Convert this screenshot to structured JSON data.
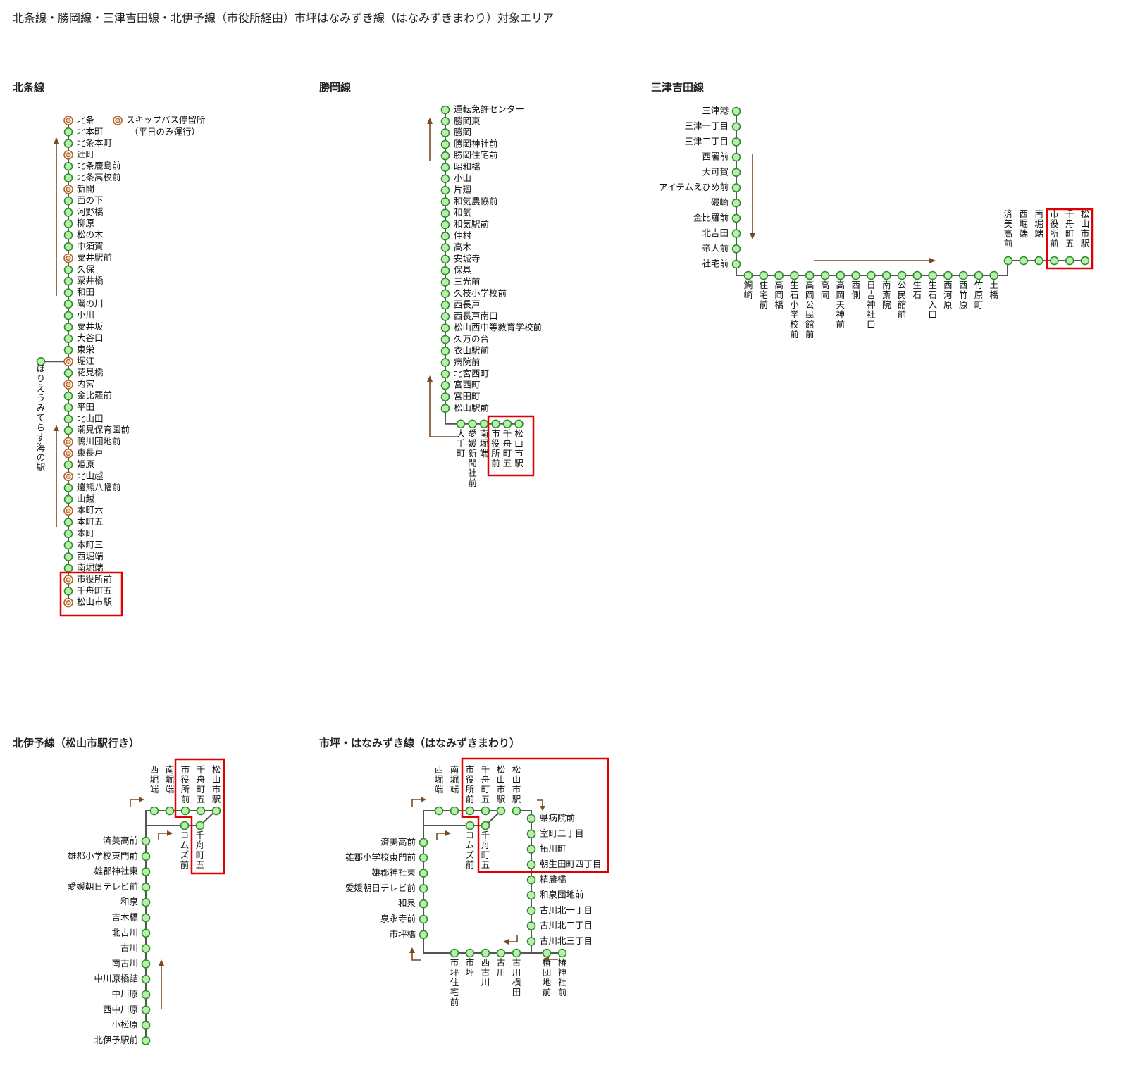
{
  "page_title": "北条線・勝岡線・三津吉田線・北伊予線（市役所経由）市坪はなみずき線（はなみずきまわり）対象エリア",
  "hojo": {
    "title": "北条線",
    "legend_label": "スキップバス停留所",
    "legend_note": "（平日のみ運行）",
    "branch_label": "ほりえうみてらす海の駅",
    "branch_at": "堀江",
    "stations": [
      {
        "name": "北条",
        "skip": true
      },
      {
        "name": "北本町",
        "skip": false
      },
      {
        "name": "北条本町",
        "skip": false
      },
      {
        "name": "辻町",
        "skip": true
      },
      {
        "name": "北条鹿島前",
        "skip": false
      },
      {
        "name": "北条高校前",
        "skip": false
      },
      {
        "name": "新開",
        "skip": true
      },
      {
        "name": "西の下",
        "skip": false
      },
      {
        "name": "河野橋",
        "skip": false
      },
      {
        "name": "柳原",
        "skip": false
      },
      {
        "name": "松の木",
        "skip": false
      },
      {
        "name": "中須賀",
        "skip": false
      },
      {
        "name": "粟井駅前",
        "skip": true
      },
      {
        "name": "久保",
        "skip": false
      },
      {
        "name": "粟井橋",
        "skip": false
      },
      {
        "name": "和田",
        "skip": false
      },
      {
        "name": "磯の川",
        "skip": false
      },
      {
        "name": "小川",
        "skip": false
      },
      {
        "name": "粟井坂",
        "skip": false
      },
      {
        "name": "大谷口",
        "skip": false
      },
      {
        "name": "東栄",
        "skip": false
      },
      {
        "name": "堀江",
        "skip": true
      },
      {
        "name": "花見橋",
        "skip": false
      },
      {
        "name": "内宮",
        "skip": true
      },
      {
        "name": "金比羅前",
        "skip": false
      },
      {
        "name": "平田",
        "skip": false
      },
      {
        "name": "北山田",
        "skip": false
      },
      {
        "name": "潮見保育園前",
        "skip": false
      },
      {
        "name": "鴨川団地前",
        "skip": true
      },
      {
        "name": "東長戸",
        "skip": true
      },
      {
        "name": "姫原",
        "skip": false
      },
      {
        "name": "北山越",
        "skip": true
      },
      {
        "name": "還熊八幡前",
        "skip": false
      },
      {
        "name": "山越",
        "skip": false
      },
      {
        "name": "本町六",
        "skip": true
      },
      {
        "name": "本町五",
        "skip": false
      },
      {
        "name": "本町",
        "skip": false
      },
      {
        "name": "本町三",
        "skip": false
      },
      {
        "name": "西堀端",
        "skip": false
      },
      {
        "name": "南堀端",
        "skip": false
      },
      {
        "name": "市役所前",
        "skip": true
      },
      {
        "name": "千舟町五",
        "skip": false
      },
      {
        "name": "松山市駅",
        "skip": true
      }
    ]
  },
  "katsuoka": {
    "title": "勝岡線",
    "stations": [
      "運転免許センター",
      "勝岡東",
      "勝岡",
      "勝岡神社前",
      "勝岡住宅前",
      "昭和橋",
      "小山",
      "片廻",
      "和気農協前",
      "和気",
      "和気駅前",
      "仲村",
      "高木",
      "安城寺",
      "保具",
      "三光前",
      "久枝小学校前",
      "西長戸",
      "西長戸南口",
      "松山西中等教育学校前",
      "久万の台",
      "衣山駅前",
      "病院前",
      "北宮西町",
      "宮西町",
      "宮田町",
      "松山駅前"
    ],
    "bottom_stations": [
      "大手町",
      "愛媛新聞社前",
      "南堀端",
      "市役所前",
      "千舟町五",
      "松山市駅"
    ]
  },
  "mitsu": {
    "title": "三津吉田線",
    "vertical_stations": [
      "三津港",
      "三津一丁目",
      "三津二丁目",
      "西署前",
      "大可賀",
      "アイテムえひめ前",
      "磯崎",
      "金比羅前",
      "北吉田",
      "帝人前",
      "社宅前"
    ],
    "bottom_stations": [
      "鯛崎",
      "住宅前",
      "高岡橋",
      "生石小学校前",
      "高岡公民館前",
      "高岡",
      "高岡天神前",
      "西側",
      "日吉神社口",
      "南斎院",
      "公民館前",
      "生石",
      "生石入口",
      "西河原",
      "西竹原",
      "竹原町",
      "土橋"
    ],
    "top_stations": [
      "済美高前",
      "西堀端",
      "南堀端",
      "市役所前",
      "千舟町五",
      "松山市駅"
    ]
  },
  "kitaiyo": {
    "title": "北伊予線（松山市駅行き）",
    "top_stations": [
      "西堀端",
      "南堀端",
      "市役所前",
      "千舟町五",
      "松山市駅"
    ],
    "mid_stations": [
      "コムズ前",
      "千舟町五"
    ],
    "vertical_stations": [
      "済美高前",
      "雄郡小学校東門前",
      "雄郡神社東",
      "愛媛朝日テレビ前",
      "和泉",
      "吉木橋",
      "北古川",
      "古川",
      "南古川",
      "中川原橋詰",
      "中川原",
      "西中川原",
      "小松原",
      "北伊予駅前"
    ]
  },
  "ichitsubo": {
    "title": "市坪・はなみずき線（はなみずきまわり）",
    "top_stations": [
      "西堀端",
      "南堀端",
      "市役所前",
      "千舟町五",
      "松山市駅",
      "松山市駅"
    ],
    "mid_stations": [
      "コムズ前",
      "千舟町五"
    ],
    "left_stations": [
      "済美高前",
      "雄郡小学校東門前",
      "雄郡神社東",
      "愛媛朝日テレビ前",
      "和泉",
      "泉永寺前",
      "市坪橋"
    ],
    "right_stations": [
      "県病院前",
      "室町二丁目",
      "拓川町",
      "朝生田町四丁目",
      "精農橋",
      "和泉団地前",
      "古川北一丁目",
      "古川北二丁目",
      "古川北三丁目"
    ],
    "bottom_stations": [
      "市坪住宅前",
      "市坪",
      "西古川",
      "古川",
      "古川横田",
      "椿団地前",
      "椿神社前"
    ]
  },
  "colors": {
    "station_fill": "#b7f0a8",
    "station_stroke": "#2e8b2e",
    "skip_stroke": "#b3632a",
    "highlight": "#e00000",
    "arrow": "#7a4a22"
  }
}
